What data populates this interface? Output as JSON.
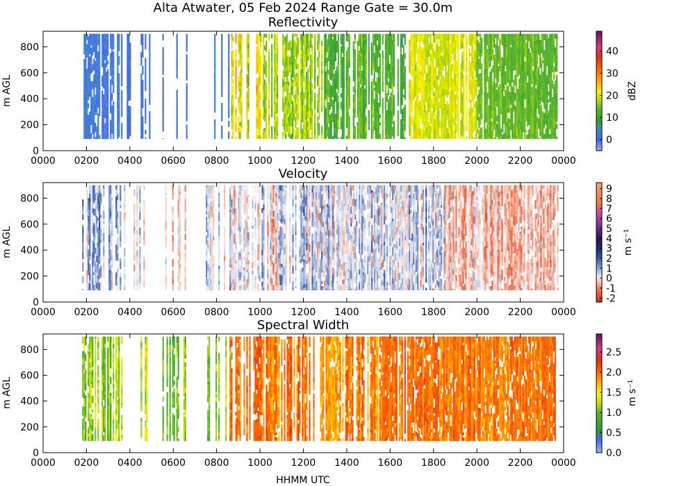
{
  "figure": {
    "suptitle": "Alta Atwater, 05 Feb 2024 Range Gate = 30.0m",
    "xlabel": "HHMM UTC"
  },
  "chart_data": [
    {
      "type": "heatmap",
      "title": "Reflectivity",
      "ylabel": "m AGL",
      "x_ticks": [
        "0000",
        "0200",
        "0400",
        "0600",
        "0800",
        "1000",
        "1200",
        "1400",
        "1600",
        "1800",
        "2000",
        "2200",
        "0000"
      ],
      "x_hours": [
        0,
        2,
        4,
        6,
        8,
        10,
        12,
        14,
        16,
        18,
        20,
        22,
        24
      ],
      "xlim_hours": [
        0,
        24
      ],
      "y_ticks": [
        0,
        200,
        400,
        600,
        800
      ],
      "ylim": [
        0,
        920
      ],
      "data_extent": {
        "y_min": 90,
        "y_max": 900
      },
      "colorbar": {
        "label": "dBZ",
        "range": [
          -5,
          49
        ],
        "ticks": [
          0,
          10,
          20,
          30,
          40
        ],
        "tick_labels": [
          "0",
          "10",
          "20",
          "30",
          "40"
        ],
        "stops": [
          {
            "v": -5,
            "c": "#9fb6f2"
          },
          {
            "v": 0,
            "c": "#4169e1"
          },
          {
            "v": 5,
            "c": "#3a8fd0"
          },
          {
            "v": 8,
            "c": "#2ca02c"
          },
          {
            "v": 14,
            "c": "#5ab52a"
          },
          {
            "v": 18,
            "c": "#b8d800"
          },
          {
            "v": 22,
            "c": "#fff200"
          },
          {
            "v": 26,
            "c": "#ffb000"
          },
          {
            "v": 32,
            "c": "#ff6a00"
          },
          {
            "v": 38,
            "c": "#e03010"
          },
          {
            "v": 42,
            "c": "#d04080"
          },
          {
            "v": 49,
            "c": "#6a1070"
          }
        ]
      },
      "segments": [
        {
          "from": 1.8,
          "to": 3.6,
          "density": 0.65,
          "value": 2,
          "spread": 4
        },
        {
          "from": 3.6,
          "to": 4.9,
          "density": 0.18,
          "value": 1,
          "spread": 3
        },
        {
          "from": 5.5,
          "to": 6.6,
          "density": 0.22,
          "value": 0,
          "spread": 3
        },
        {
          "from": 7.5,
          "to": 8.6,
          "density": 0.25,
          "value": 2,
          "spread": 4
        },
        {
          "from": 8.6,
          "to": 10.0,
          "density": 0.55,
          "value": 22,
          "spread": 9
        },
        {
          "from": 10.0,
          "to": 13.0,
          "density": 0.7,
          "value": 17,
          "spread": 7
        },
        {
          "from": 13.0,
          "to": 16.8,
          "density": 0.75,
          "value": 12,
          "spread": 6
        },
        {
          "from": 16.8,
          "to": 20.0,
          "density": 0.96,
          "value": 20,
          "spread": 4
        },
        {
          "from": 20.0,
          "to": 23.7,
          "density": 0.97,
          "value": 14,
          "spread": 4
        }
      ]
    },
    {
      "type": "heatmap",
      "title": "Velocity",
      "ylabel": "m AGL",
      "x_ticks": [
        "0000",
        "0200",
        "0400",
        "0600",
        "0800",
        "1000",
        "1200",
        "1400",
        "1600",
        "1800",
        "2000",
        "2200",
        "0000"
      ],
      "x_hours": [
        0,
        2,
        4,
        6,
        8,
        10,
        12,
        14,
        16,
        18,
        20,
        22,
        24
      ],
      "xlim_hours": [
        0,
        24
      ],
      "y_ticks": [
        0,
        200,
        400,
        600,
        800
      ],
      "ylim": [
        0,
        920
      ],
      "data_extent": {
        "y_min": 90,
        "y_max": 900
      },
      "colorbar": {
        "label": "m s⁻¹",
        "range": [
          -2.4,
          9.6
        ],
        "ticks": [
          -2,
          -1,
          0,
          1,
          2,
          3,
          4,
          5,
          6,
          7,
          8,
          9
        ],
        "tick_labels": [
          "-2",
          "-1",
          "0",
          "1",
          "2",
          "3",
          "4",
          "5",
          "6",
          "7",
          "8",
          "9"
        ],
        "stops": [
          {
            "v": -2.4,
            "c": "#c83212"
          },
          {
            "v": -1.0,
            "c": "#f07d5a"
          },
          {
            "v": -0.2,
            "c": "#fbd7c8"
          },
          {
            "v": 0.2,
            "c": "#e6ebf5"
          },
          {
            "v": 1.0,
            "c": "#8fa8d8"
          },
          {
            "v": 2.0,
            "c": "#3d5ea8"
          },
          {
            "v": 3.0,
            "c": "#1a2f6c"
          },
          {
            "v": 4.0,
            "c": "#2a1a4a"
          },
          {
            "v": 5.0,
            "c": "#6e2a8a"
          },
          {
            "v": 6.5,
            "c": "#c04bb0"
          },
          {
            "v": 7.5,
            "c": "#e8784a"
          },
          {
            "v": 9.6,
            "c": "#f5a36a"
          }
        ]
      },
      "segments": [
        {
          "from": 1.8,
          "to": 3.6,
          "density": 0.62,
          "value": 1.2,
          "spread": 1.6
        },
        {
          "from": 3.6,
          "to": 4.9,
          "density": 0.18,
          "value": 0.6,
          "spread": 1.4
        },
        {
          "from": 5.5,
          "to": 6.6,
          "density": 0.22,
          "value": -0.5,
          "spread": 1.2
        },
        {
          "from": 7.5,
          "to": 8.6,
          "density": 0.25,
          "value": 0.5,
          "spread": 1.5
        },
        {
          "from": 8.6,
          "to": 12.5,
          "density": 0.75,
          "value": 0.3,
          "spread": 1.7
        },
        {
          "from": 12.5,
          "to": 18.5,
          "density": 0.9,
          "value": 0.6,
          "spread": 1.5
        },
        {
          "from": 18.5,
          "to": 23.7,
          "density": 0.9,
          "value": -0.4,
          "spread": 1.2
        }
      ]
    },
    {
      "type": "heatmap",
      "title": "Spectral Width",
      "ylabel": "m AGL",
      "x_ticks": [
        "0000",
        "0200",
        "0400",
        "0600",
        "0800",
        "1000",
        "1200",
        "1400",
        "1600",
        "1800",
        "2000",
        "2200",
        "0000"
      ],
      "x_hours": [
        0,
        2,
        4,
        6,
        8,
        10,
        12,
        14,
        16,
        18,
        20,
        22,
        24
      ],
      "xlim_hours": [
        0,
        24
      ],
      "y_ticks": [
        0,
        200,
        400,
        600,
        800
      ],
      "ylim": [
        0,
        920
      ],
      "data_extent": {
        "y_min": 90,
        "y_max": 900
      },
      "colorbar": {
        "label": "m s⁻¹",
        "range": [
          0,
          2.95
        ],
        "ticks": [
          0,
          0.5,
          1,
          1.5,
          2,
          2.5
        ],
        "tick_labels": [
          "0.0",
          "0.5",
          "1.0",
          "1.5",
          "2.0",
          "2.5"
        ],
        "stops": [
          {
            "v": 0.0,
            "c": "#9fb6f2"
          },
          {
            "v": 0.35,
            "c": "#4169e1"
          },
          {
            "v": 0.6,
            "c": "#2ca02c"
          },
          {
            "v": 1.0,
            "c": "#5ab52a"
          },
          {
            "v": 1.25,
            "c": "#c8e000"
          },
          {
            "v": 1.5,
            "c": "#fff200"
          },
          {
            "v": 1.75,
            "c": "#ffb000"
          },
          {
            "v": 2.0,
            "c": "#ff6a00"
          },
          {
            "v": 2.3,
            "c": "#e03010"
          },
          {
            "v": 2.6,
            "c": "#d04080"
          },
          {
            "v": 2.95,
            "c": "#6a1070"
          }
        ]
      },
      "segments": [
        {
          "from": 1.8,
          "to": 3.6,
          "density": 0.65,
          "value": 1.1,
          "spread": 0.5
        },
        {
          "from": 3.6,
          "to": 4.9,
          "density": 0.18,
          "value": 1.2,
          "spread": 0.5
        },
        {
          "from": 5.5,
          "to": 6.6,
          "density": 0.22,
          "value": 1.1,
          "spread": 0.5
        },
        {
          "from": 7.5,
          "to": 8.6,
          "density": 0.25,
          "value": 1.2,
          "spread": 0.5
        },
        {
          "from": 8.6,
          "to": 15.5,
          "density": 0.72,
          "value": 1.95,
          "spread": 0.35
        },
        {
          "from": 15.5,
          "to": 23.7,
          "density": 0.95,
          "value": 2.0,
          "spread": 0.3
        }
      ]
    }
  ]
}
